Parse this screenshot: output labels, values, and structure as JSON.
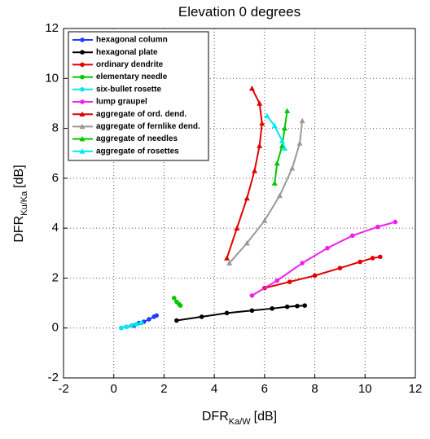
{
  "chart_data": {
    "type": "line",
    "title": "Elevation 0 degrees",
    "xlabel": "DFR",
    "xlabel_sub": "Ka/W",
    "xlabel_unit": "[dB]",
    "ylabel": "DFR",
    "ylabel_sub": "Ku/Ka",
    "ylabel_unit": "[dB]",
    "xlim": [
      -2,
      12
    ],
    "ylim": [
      -2,
      12
    ],
    "xticks": [
      -2,
      0,
      2,
      4,
      6,
      8,
      10,
      12
    ],
    "yticks": [
      -2,
      0,
      2,
      4,
      6,
      8,
      10,
      12
    ],
    "grid": true,
    "legend": "upper-left",
    "series": [
      {
        "name": "hexagonal column",
        "color": "#1f3fff",
        "marker": "circle",
        "x": [
          0.3,
          0.5,
          0.8,
          1.0,
          1.2,
          1.4,
          1.6,
          1.7
        ],
        "values": [
          0,
          0.05,
          0.1,
          0.2,
          0.25,
          0.35,
          0.45,
          0.5
        ]
      },
      {
        "name": "hexagonal plate",
        "color": "#000000",
        "marker": "circle",
        "x": [
          2.5,
          3.5,
          4.5,
          5.5,
          6.3,
          6.9,
          7.3,
          7.6
        ],
        "values": [
          0.3,
          0.45,
          0.6,
          0.7,
          0.78,
          0.85,
          0.88,
          0.9
        ]
      },
      {
        "name": "ordinary dendrite",
        "color": "#e00000",
        "marker": "circle",
        "x": [
          6.0,
          7.0,
          8.0,
          9.0,
          9.8,
          10.3,
          10.6
        ],
        "values": [
          1.6,
          1.85,
          2.1,
          2.4,
          2.65,
          2.8,
          2.85
        ]
      },
      {
        "name": "elementary needle",
        "color": "#00c800",
        "marker": "circle",
        "x": [
          2.4,
          2.5,
          2.6,
          2.65
        ],
        "values": [
          1.2,
          1.05,
          0.95,
          0.9
        ]
      },
      {
        "name": "six-bullet rosette",
        "color": "#00e8f0",
        "marker": "circle",
        "x": [
          0.3,
          0.5,
          0.7,
          0.9,
          1.1
        ],
        "values": [
          0,
          0.05,
          0.1,
          0.15,
          0.2
        ]
      },
      {
        "name": "lump graupel",
        "color": "#f020f0",
        "marker": "circle",
        "x": [
          5.5,
          6.5,
          7.5,
          8.5,
          9.5,
          10.5,
          11.2
        ],
        "values": [
          1.3,
          1.9,
          2.6,
          3.2,
          3.7,
          4.05,
          4.25
        ]
      },
      {
        "name": "aggregate of ord. dend.",
        "color": "#e00000",
        "marker": "triangle",
        "x": [
          4.5,
          4.9,
          5.3,
          5.6,
          5.8,
          5.9,
          5.8,
          5.5
        ],
        "values": [
          2.8,
          4.0,
          5.2,
          6.3,
          7.3,
          8.2,
          9.0,
          9.6
        ]
      },
      {
        "name": "aggregate of fernlike dend.",
        "color": "#999999",
        "marker": "triangle",
        "x": [
          4.6,
          5.3,
          6.0,
          6.6,
          7.1,
          7.4,
          7.5
        ],
        "values": [
          2.6,
          3.4,
          4.3,
          5.3,
          6.4,
          7.4,
          8.3
        ]
      },
      {
        "name": "aggregate of needles",
        "color": "#00c800",
        "marker": "triangle",
        "x": [
          6.4,
          6.5,
          6.7,
          6.8,
          6.9
        ],
        "values": [
          5.8,
          6.6,
          7.3,
          8.0,
          8.7
        ]
      },
      {
        "name": "aggregate of rosettes",
        "color": "#00e8f0",
        "marker": "triangle",
        "x": [
          6.1,
          6.4,
          6.7,
          6.8
        ],
        "values": [
          8.5,
          8.1,
          7.5,
          7.2
        ]
      }
    ]
  }
}
